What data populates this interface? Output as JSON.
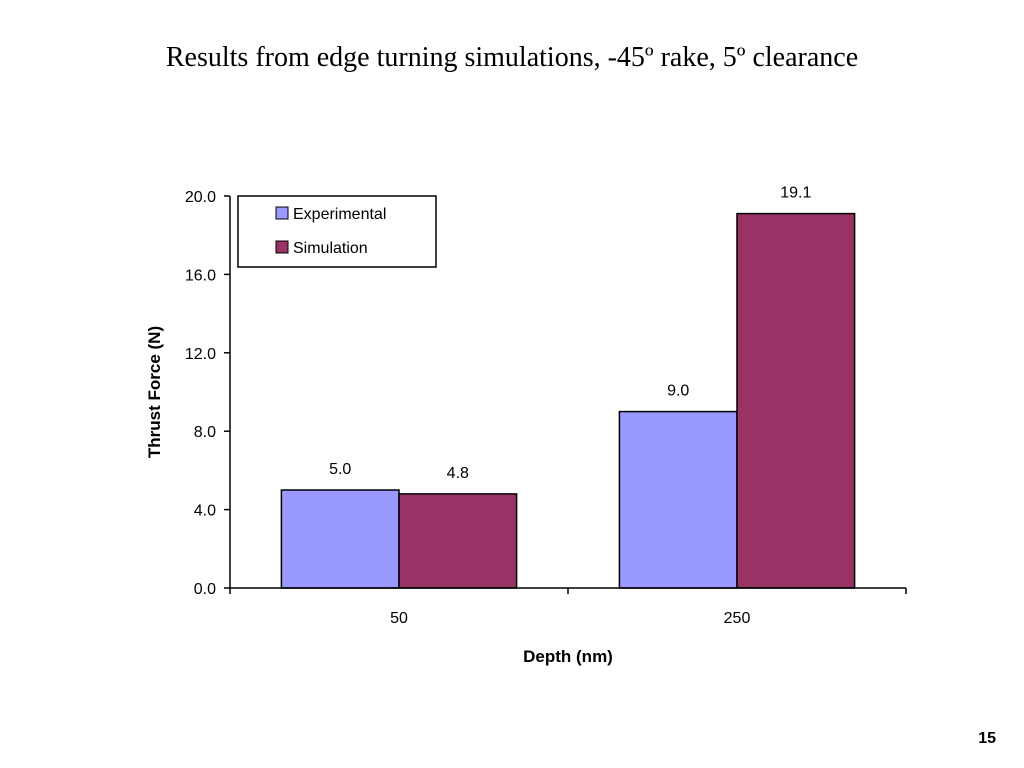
{
  "slide": {
    "title": "Results from edge turning simulations, -45º rake, 5º clearance",
    "page_number": "15"
  },
  "chart_data": {
    "type": "bar",
    "categories": [
      "50",
      "250"
    ],
    "series": [
      {
        "name": "Experimental",
        "values": [
          5.0,
          9.0
        ],
        "value_labels": [
          "5.0",
          "9.0"
        ],
        "color": "#9999FF"
      },
      {
        "name": "Simulation",
        "values": [
          4.8,
          19.1
        ],
        "value_labels": [
          "4.8",
          "19.1"
        ],
        "color": "#993366"
      }
    ],
    "xlabel": "Depth (nm)",
    "ylabel": "Thrust Force (N)",
    "ylim": [
      0,
      20
    ],
    "yticks": [
      0,
      4,
      8,
      12,
      16,
      20
    ],
    "ytick_labels": [
      "0.0",
      "4.0",
      "8.0",
      "12.0",
      "16.0",
      "20.0"
    ],
    "grid": false,
    "legend_position": "top-left"
  }
}
